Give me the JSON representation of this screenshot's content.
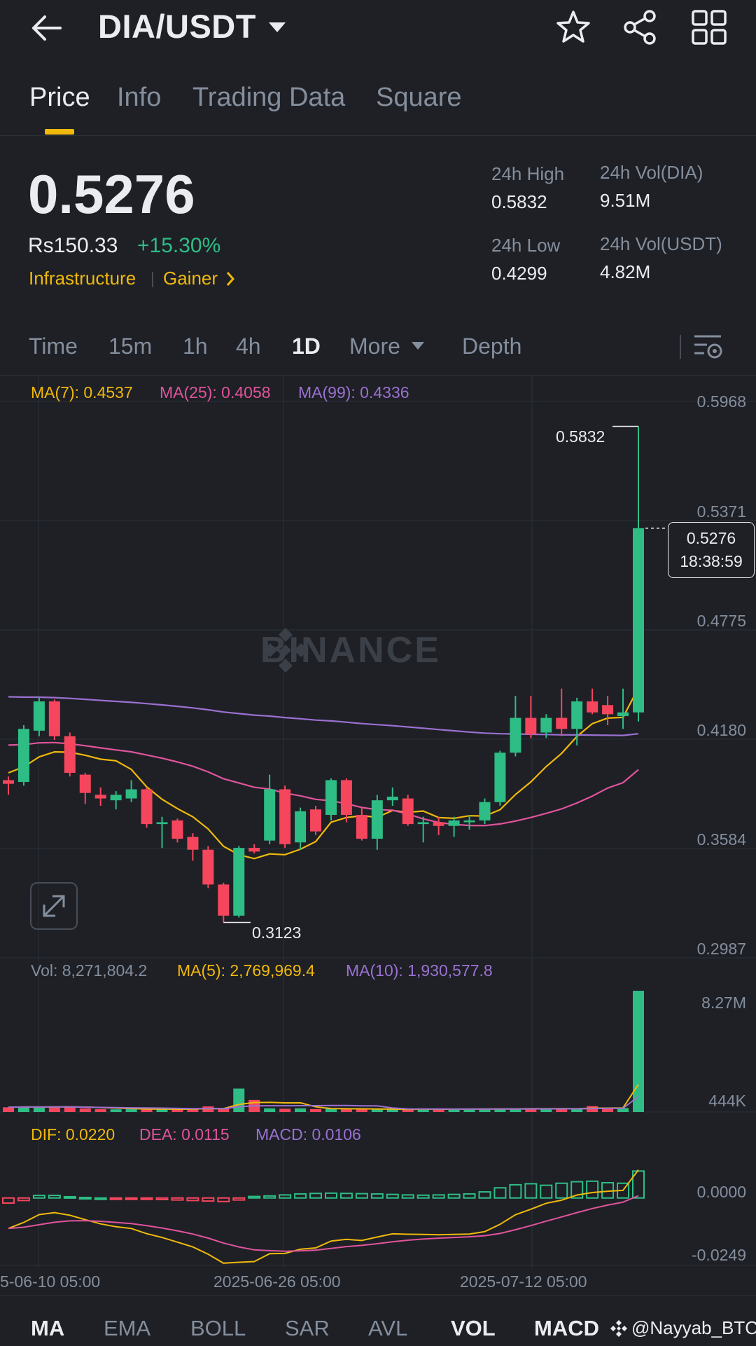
{
  "header": {
    "pair": "DIA/USDT",
    "icons": [
      "back-arrow-icon",
      "favorite-star-icon",
      "share-icon",
      "grid-menu-icon"
    ]
  },
  "tabs": [
    "Price",
    "Info",
    "Trading Data",
    "Square"
  ],
  "price": {
    "last": "0.5276",
    "fiat": "Rs150.33",
    "change": "+15.30%",
    "tags": [
      "Infrastructure",
      "Gainer"
    ]
  },
  "stats": {
    "high_label": "24h High",
    "high": "0.5832",
    "low_label": "24h Low",
    "low": "0.4299",
    "vol_base_label": "24h Vol(DIA)",
    "vol_base": "9.51M",
    "vol_quote_label": "24h Vol(USDT)",
    "vol_quote": "4.82M"
  },
  "timeframes": [
    "Time",
    "15m",
    "1h",
    "4h",
    "1D",
    "More",
    "Depth"
  ],
  "active_timeframe": "1D",
  "ma_legend": {
    "ma7": "MA(7): 0.4537",
    "ma25": "MA(25): 0.4058",
    "ma99": "MA(99): 0.4336"
  },
  "price_axis": [
    "0.5968",
    "0.5371",
    "0.4775",
    "0.4180",
    "0.3584",
    "0.2987"
  ],
  "current_badge": {
    "price": "0.5276",
    "time": "18:38:59"
  },
  "high_marker": "0.5832",
  "low_marker": "0.3123",
  "watermark": "BINANCE",
  "volume": {
    "vol_label": "Vol: 8,271,804.2",
    "ma5_label": "MA(5): 2,769,969.4",
    "ma10_label": "MA(10): 1,930,577.8",
    "axis": [
      "8.27M",
      "444K"
    ]
  },
  "macd": {
    "dif_label": "DIF: 0.0220",
    "dea_label": "DEA: 0.0115",
    "macd_label": "MACD: 0.0106",
    "axis": [
      "0.0000",
      "-0.0249"
    ]
  },
  "x_axis": [
    "5-06-10 05:00",
    "2025-06-26 05:00",
    "2025-07-12 05:00"
  ],
  "indicators": [
    "MA",
    "EMA",
    "BOLL",
    "SAR",
    "AVL",
    "VOL",
    "MACD"
  ],
  "overlay_watermark": "@Nayyab_BTC",
  "colors": {
    "up": "#2ebd85",
    "down": "#f6465d",
    "ma7": "#f0b90b",
    "ma25": "#e0549b",
    "ma99": "#9b71d1",
    "accent": "#f0b90b",
    "bg": "#1e2026"
  },
  "chart_data": {
    "type": "candlestick",
    "price_ylim": [
      0.2987,
      0.5968
    ],
    "candles": [
      {
        "o": 0.39,
        "h": 0.392,
        "l": 0.382,
        "c": 0.388
      },
      {
        "o": 0.389,
        "h": 0.42,
        "l": 0.387,
        "c": 0.418
      },
      {
        "o": 0.417,
        "h": 0.435,
        "l": 0.414,
        "c": 0.433
      },
      {
        "o": 0.433,
        "h": 0.434,
        "l": 0.412,
        "c": 0.414
      },
      {
        "o": 0.414,
        "h": 0.416,
        "l": 0.392,
        "c": 0.394
      },
      {
        "o": 0.393,
        "h": 0.394,
        "l": 0.377,
        "c": 0.383
      },
      {
        "o": 0.382,
        "h": 0.386,
        "l": 0.376,
        "c": 0.38
      },
      {
        "o": 0.379,
        "h": 0.384,
        "l": 0.374,
        "c": 0.382
      },
      {
        "o": 0.38,
        "h": 0.39,
        "l": 0.378,
        "c": 0.385
      },
      {
        "o": 0.385,
        "h": 0.386,
        "l": 0.364,
        "c": 0.366
      },
      {
        "o": 0.366,
        "h": 0.37,
        "l": 0.353,
        "c": 0.367
      },
      {
        "o": 0.368,
        "h": 0.369,
        "l": 0.356,
        "c": 0.358
      },
      {
        "o": 0.359,
        "h": 0.361,
        "l": 0.346,
        "c": 0.352
      },
      {
        "o": 0.352,
        "h": 0.354,
        "l": 0.331,
        "c": 0.333
      },
      {
        "o": 0.333,
        "h": 0.334,
        "l": 0.3123,
        "c": 0.316
      },
      {
        "o": 0.316,
        "h": 0.354,
        "l": 0.315,
        "c": 0.353
      },
      {
        "o": 0.353,
        "h": 0.355,
        "l": 0.35,
        "c": 0.351
      },
      {
        "o": 0.357,
        "h": 0.393,
        "l": 0.355,
        "c": 0.385
      },
      {
        "o": 0.385,
        "h": 0.387,
        "l": 0.353,
        "c": 0.355
      },
      {
        "o": 0.356,
        "h": 0.375,
        "l": 0.352,
        "c": 0.373
      },
      {
        "o": 0.374,
        "h": 0.376,
        "l": 0.36,
        "c": 0.362
      },
      {
        "o": 0.371,
        "h": 0.391,
        "l": 0.368,
        "c": 0.39
      },
      {
        "o": 0.39,
        "h": 0.391,
        "l": 0.367,
        "c": 0.371
      },
      {
        "o": 0.371,
        "h": 0.375,
        "l": 0.357,
        "c": 0.358
      },
      {
        "o": 0.358,
        "h": 0.382,
        "l": 0.352,
        "c": 0.379
      },
      {
        "o": 0.379,
        "h": 0.386,
        "l": 0.376,
        "c": 0.381
      },
      {
        "o": 0.38,
        "h": 0.382,
        "l": 0.365,
        "c": 0.366
      },
      {
        "o": 0.366,
        "h": 0.37,
        "l": 0.356,
        "c": 0.367
      },
      {
        "o": 0.367,
        "h": 0.37,
        "l": 0.36,
        "c": 0.365
      },
      {
        "o": 0.365,
        "h": 0.37,
        "l": 0.359,
        "c": 0.368
      },
      {
        "o": 0.367,
        "h": 0.371,
        "l": 0.363,
        "c": 0.368
      },
      {
        "o": 0.368,
        "h": 0.38,
        "l": 0.366,
        "c": 0.378
      },
      {
        "o": 0.378,
        "h": 0.406,
        "l": 0.376,
        "c": 0.405
      },
      {
        "o": 0.405,
        "h": 0.436,
        "l": 0.403,
        "c": 0.424
      },
      {
        "o": 0.424,
        "h": 0.436,
        "l": 0.413,
        "c": 0.415
      },
      {
        "o": 0.416,
        "h": 0.426,
        "l": 0.413,
        "c": 0.424
      },
      {
        "o": 0.424,
        "h": 0.44,
        "l": 0.414,
        "c": 0.418
      },
      {
        "o": 0.418,
        "h": 0.435,
        "l": 0.409,
        "c": 0.433
      },
      {
        "o": 0.433,
        "h": 0.44,
        "l": 0.426,
        "c": 0.427
      },
      {
        "o": 0.431,
        "h": 0.436,
        "l": 0.42,
        "c": 0.426
      },
      {
        "o": 0.425,
        "h": 0.44,
        "l": 0.418,
        "c": 0.427
      },
      {
        "o": 0.427,
        "h": 0.5832,
        "l": 0.422,
        "c": 0.5276
      }
    ],
    "volume_ylim": [
      0,
      8271804.2
    ],
    "volume": [
      0.32,
      0.36,
      0.34,
      0.36,
      0.37,
      0.24,
      0.19,
      0.18,
      0.19,
      0.23,
      0.18,
      0.17,
      0.2,
      0.38,
      0.22,
      1.6,
      0.82,
      0.25,
      0.22,
      0.25,
      0.2,
      0.24,
      0.2,
      0.19,
      0.18,
      0.17,
      0.18,
      0.24,
      0.19,
      0.18,
      0.2,
      0.22,
      0.24,
      0.22,
      0.23,
      0.2,
      0.24,
      0.22,
      0.4,
      0.25,
      0.27,
      8.27
    ],
    "macd_ylim": [
      -0.0249,
      0.022
    ],
    "macd_hist": [
      -0.002,
      -0.001,
      0.001,
      0.001,
      0.0005,
      0.0002,
      0,
      -0.0002,
      -0.0003,
      -0.0004,
      -0.0006,
      -0.0008,
      -0.001,
      -0.0012,
      -0.0014,
      -0.0008,
      0.0006,
      0.0008,
      0.0012,
      0.0016,
      0.0018,
      0.0019,
      0.0018,
      0.0017,
      0.0016,
      0.0014,
      0.0012,
      0.0011,
      0.0012,
      0.0014,
      0.0016,
      0.0024,
      0.004,
      0.0052,
      0.0056,
      0.005,
      0.0058,
      0.0064,
      0.0066,
      0.006,
      0.0058,
      0.0106
    ]
  }
}
